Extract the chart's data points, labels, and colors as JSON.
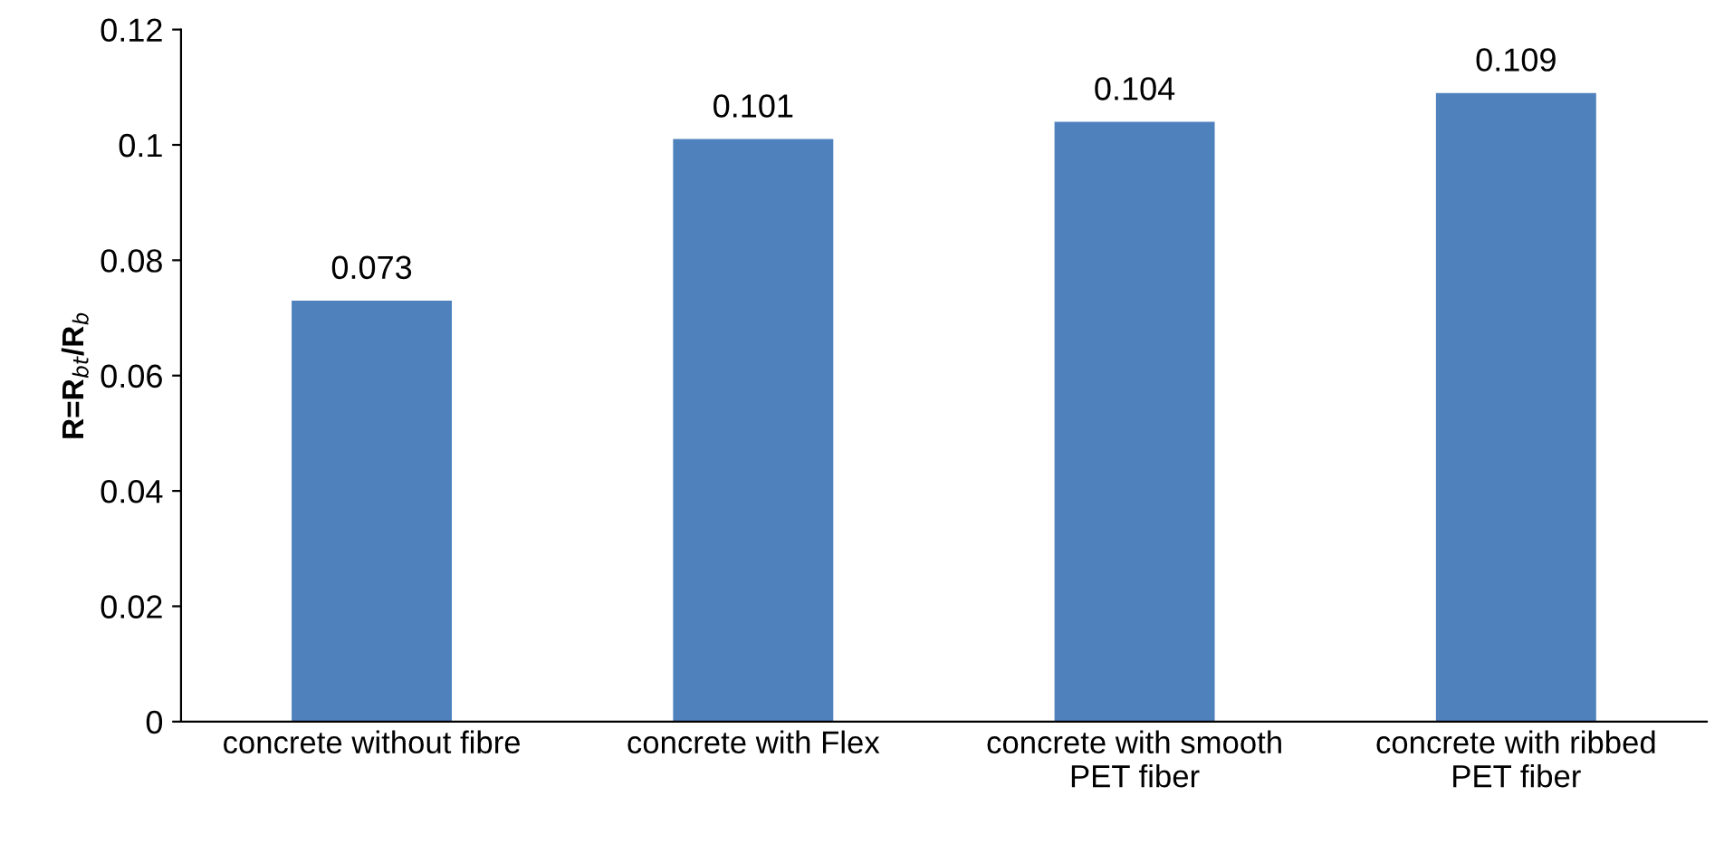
{
  "chart_data": {
    "type": "bar",
    "ylabel": "R=R$_{bt}$/R$_{b}$",
    "categories": [
      "concrete without fibre",
      "concrete with Flex",
      "concrete with smooth\nPET fiber",
      "concrete with ribbed\nPET fiber"
    ],
    "values": [
      0.073,
      0.101,
      0.104,
      0.109
    ],
    "color": "#4f81bd",
    "ylim": [
      0,
      0.12
    ],
    "yticks": [
      0,
      {
        "value": 0.02,
        "label": "0.02"
      },
      {
        "value": 0.04,
        "label": "0.04"
      },
      {
        "value": 0.06,
        "label": "0.06"
      },
      {
        "value": 0.08,
        "label": "0.08"
      },
      {
        "value": 0.1,
        "label": "0.1"
      },
      {
        "value": 0.12,
        "label": "0.12"
      }
    ],
    "data_labels": true,
    "grid": false
  }
}
